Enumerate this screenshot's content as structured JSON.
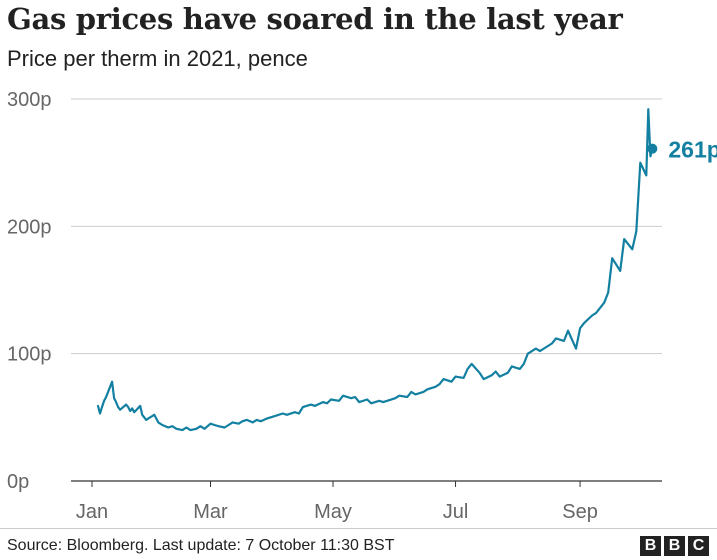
{
  "header": {
    "title": "Gas prices have soared in the last year",
    "subtitle": "Price per therm in 2021, pence"
  },
  "footer": {
    "source": "Source: Bloomberg. Last update: 7 October 11:30 BST",
    "logo_letters": [
      "B",
      "B",
      "C"
    ]
  },
  "colors": {
    "line": "#1380A1",
    "grid": "#cccccc",
    "axis": "#333333",
    "tick_text": "#666666"
  },
  "chart_data": {
    "type": "line",
    "title": "Gas prices have soared in the last year",
    "subtitle": "Price per therm in 2021, pence",
    "ylim": [
      0,
      300
    ],
    "y_ticks": [
      0,
      100,
      200,
      300
    ],
    "y_tick_labels": [
      "0p",
      "100p",
      "200p",
      "300p"
    ],
    "x_ticks": [
      "2021-01-01",
      "2021-03-01",
      "2021-05-01",
      "2021-07-01",
      "2021-09-01"
    ],
    "x_tick_labels": [
      "Jan",
      "Mar",
      "May",
      "Jul",
      "Sep"
    ],
    "xlim": [
      "2021-01-01",
      "2021-10-07"
    ],
    "grid": "horizontal",
    "end_label": "261p",
    "series": [
      {
        "x": [
          "2021-01-04",
          "2021-01-05",
          "2021-01-06",
          "2021-01-07",
          "2021-01-08",
          "2021-01-11",
          "2021-01-12",
          "2021-01-13",
          "2021-01-14",
          "2021-01-15",
          "2021-01-18",
          "2021-01-19",
          "2021-01-20",
          "2021-01-21",
          "2021-01-22",
          "2021-01-25",
          "2021-01-26",
          "2021-01-27",
          "2021-01-28",
          "2021-01-29",
          "2021-02-01",
          "2021-02-03",
          "2021-02-05",
          "2021-02-08",
          "2021-02-10",
          "2021-02-12",
          "2021-02-15",
          "2021-02-17",
          "2021-02-19",
          "2021-02-22",
          "2021-02-24",
          "2021-02-26",
          "2021-03-01",
          "2021-03-03",
          "2021-03-05",
          "2021-03-08",
          "2021-03-10",
          "2021-03-12",
          "2021-03-15",
          "2021-03-17",
          "2021-03-19",
          "2021-03-22",
          "2021-03-24",
          "2021-03-26",
          "2021-03-29",
          "2021-03-31",
          "2021-04-02",
          "2021-04-06",
          "2021-04-08",
          "2021-04-12",
          "2021-04-14",
          "2021-04-16",
          "2021-04-20",
          "2021-04-22",
          "2021-04-26",
          "2021-04-28",
          "2021-04-30",
          "2021-05-04",
          "2021-05-06",
          "2021-05-10",
          "2021-05-12",
          "2021-05-14",
          "2021-05-18",
          "2021-05-20",
          "2021-05-24",
          "2021-05-26",
          "2021-05-28",
          "2021-06-01",
          "2021-06-03",
          "2021-06-07",
          "2021-06-09",
          "2021-06-11",
          "2021-06-15",
          "2021-06-17",
          "2021-06-21",
          "2021-06-23",
          "2021-06-25",
          "2021-06-29",
          "2021-07-01",
          "2021-07-05",
          "2021-07-07",
          "2021-07-09",
          "2021-07-13",
          "2021-07-15",
          "2021-07-19",
          "2021-07-21",
          "2021-07-23",
          "2021-07-27",
          "2021-07-29",
          "2021-08-02",
          "2021-08-04",
          "2021-08-06",
          "2021-08-10",
          "2021-08-12",
          "2021-08-16",
          "2021-08-18",
          "2021-08-20",
          "2021-08-24",
          "2021-08-26",
          "2021-08-30",
          "2021-09-01",
          "2021-09-03",
          "2021-09-07",
          "2021-09-09",
          "2021-09-13",
          "2021-09-15",
          "2021-09-17",
          "2021-09-21",
          "2021-09-23",
          "2021-09-27",
          "2021-09-29",
          "2021-10-01",
          "2021-10-04",
          "2021-10-05",
          "2021-10-06",
          "2021-10-07"
        ],
        "values": [
          59,
          53,
          58,
          63,
          66,
          78,
          65,
          62,
          58,
          56,
          60,
          58,
          55,
          57,
          54,
          59,
          52,
          50,
          48,
          49,
          52,
          46,
          44,
          42,
          43,
          41,
          40,
          42,
          40,
          41,
          43,
          41,
          45,
          44,
          43,
          42,
          44,
          46,
          45,
          47,
          48,
          46,
          48,
          47,
          49,
          50,
          51,
          53,
          52,
          54,
          53,
          58,
          60,
          59,
          62,
          61,
          64,
          63,
          67,
          65,
          66,
          62,
          64,
          61,
          63,
          62,
          63,
          65,
          67,
          66,
          70,
          68,
          70,
          72,
          74,
          76,
          80,
          78,
          82,
          81,
          88,
          92,
          85,
          80,
          83,
          86,
          82,
          85,
          90,
          88,
          92,
          100,
          104,
          102,
          106,
          108,
          112,
          110,
          118,
          104,
          120,
          124,
          130,
          132,
          140,
          148,
          175,
          165,
          190,
          182,
          196,
          250,
          240,
          292,
          255,
          261
        ]
      }
    ]
  }
}
